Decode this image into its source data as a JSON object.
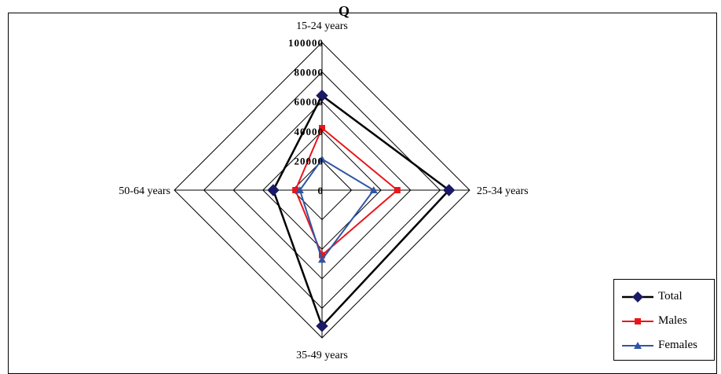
{
  "chart_data": {
    "type": "radar",
    "title": "Q",
    "categories": [
      "15-24 years",
      "25-34 years",
      "35-49 years",
      "50-64 years"
    ],
    "radial_ticks": [
      0,
      20000,
      40000,
      60000,
      80000,
      100000
    ],
    "rlim": [
      0,
      100000
    ],
    "series": [
      {
        "name": "Total",
        "color": "#1a1a66",
        "line_color": "#000000",
        "marker": "diamond",
        "values": [
          64000,
          86000,
          92000,
          33000
        ]
      },
      {
        "name": "Males",
        "color": "#e8161b",
        "line_color": "#e8161b",
        "marker": "square",
        "values": [
          42000,
          51000,
          44000,
          18000
        ]
      },
      {
        "name": "Females",
        "color": "#2f55a4",
        "line_color": "#2f55a4",
        "marker": "triangle",
        "values": [
          21000,
          35000,
          47000,
          15000
        ]
      }
    ],
    "legend_position": "bottom-right",
    "grid": true
  }
}
